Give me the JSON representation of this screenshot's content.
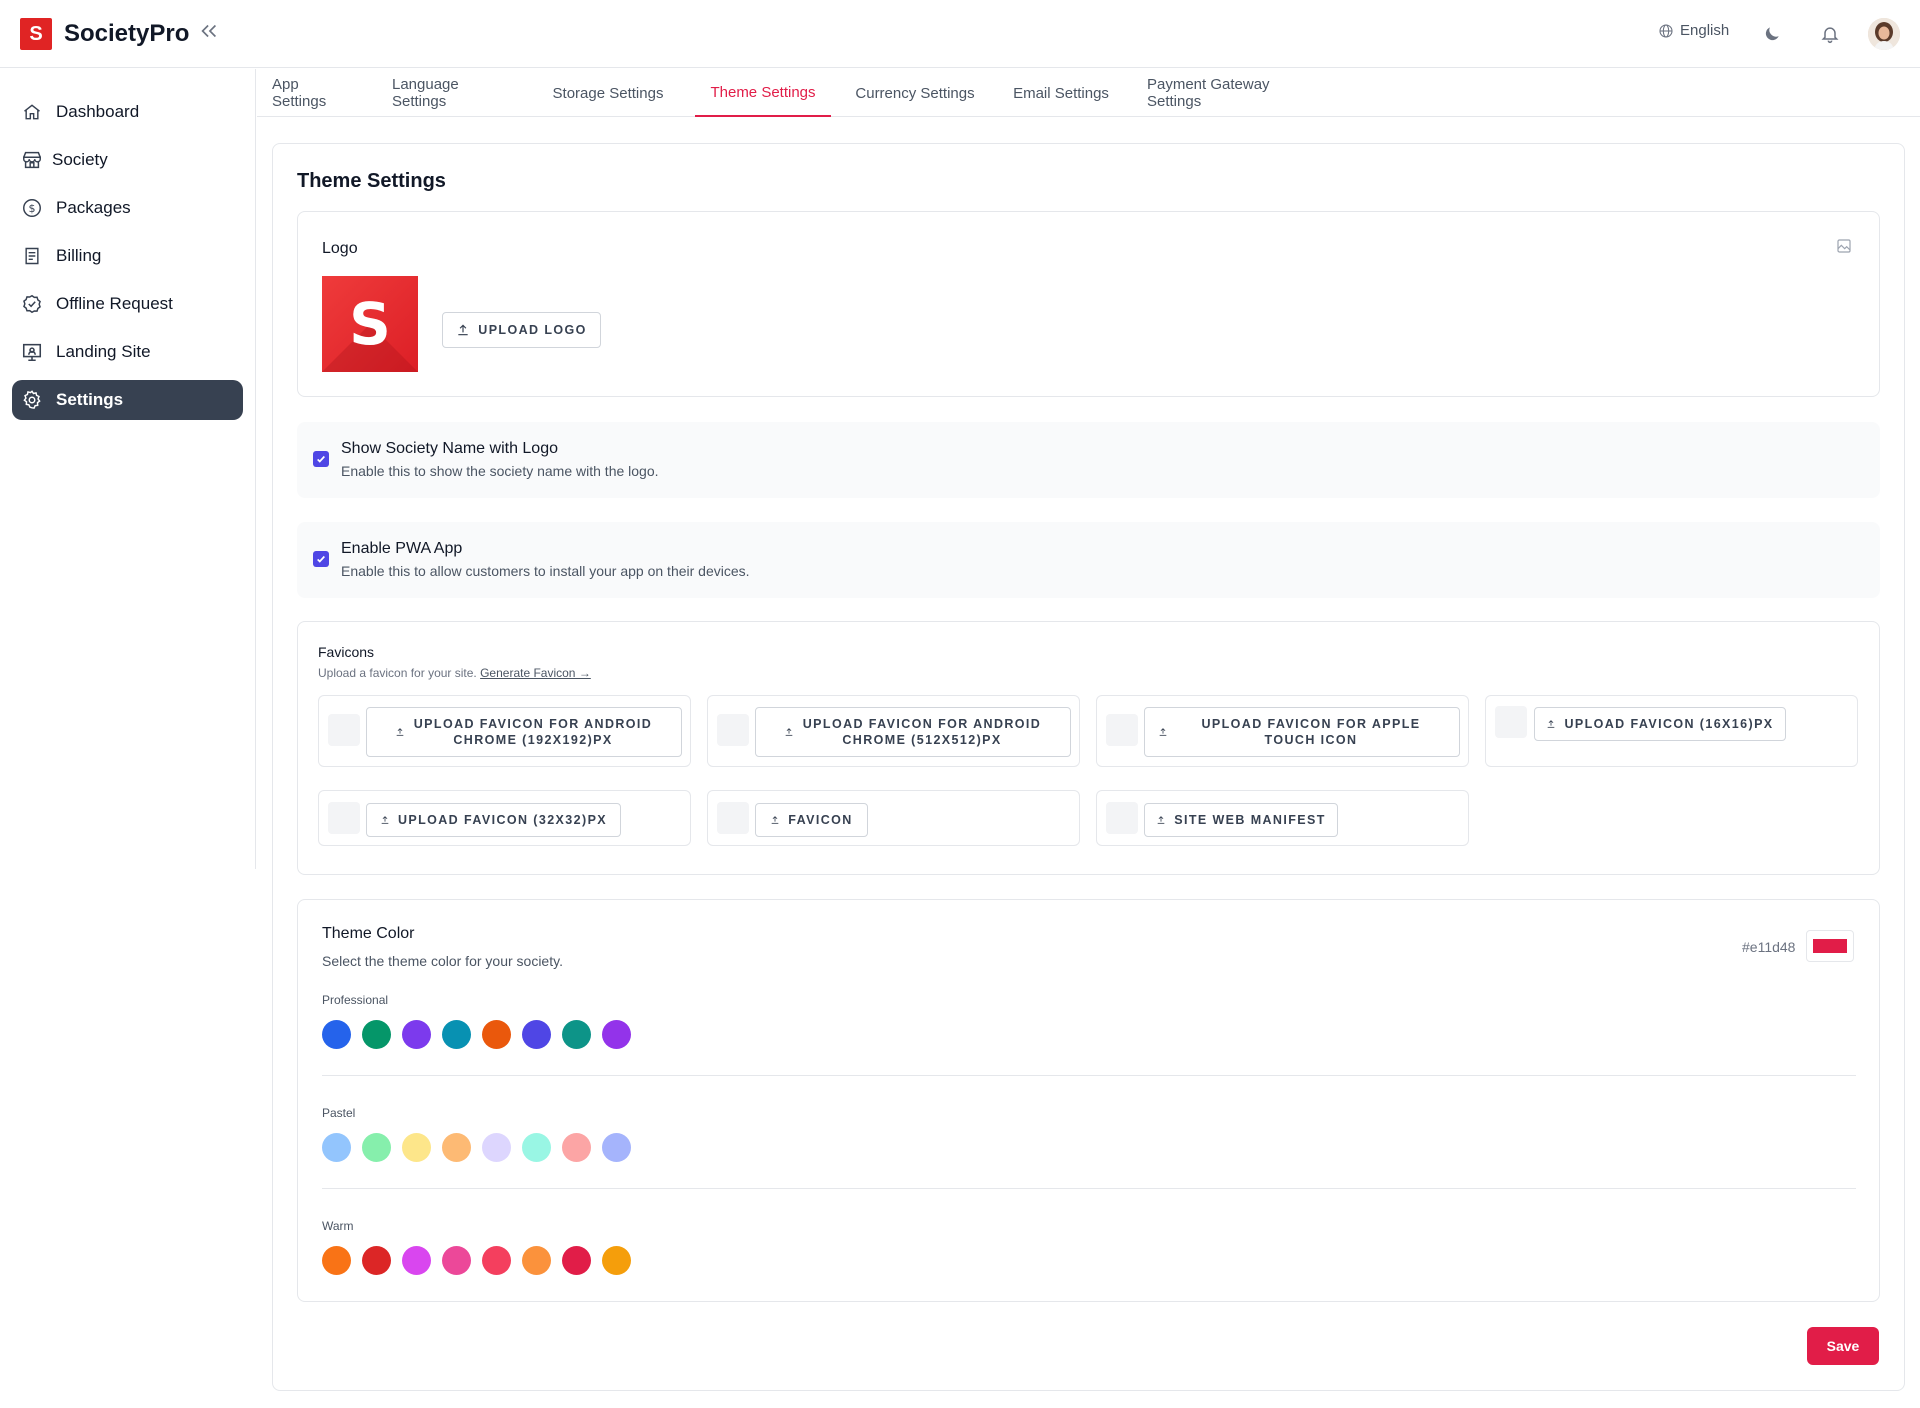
{
  "header": {
    "brand_letter": "S",
    "brand_name": "SocietyPro",
    "language": "English"
  },
  "sidebar": {
    "items": [
      {
        "label": "Dashboard",
        "icon": "home-icon"
      },
      {
        "label": "Society",
        "icon": "store-icon"
      },
      {
        "label": "Packages",
        "icon": "dollar-circle-icon"
      },
      {
        "label": "Billing",
        "icon": "receipt-icon"
      },
      {
        "label": "Offline Request",
        "icon": "badge-check-icon"
      },
      {
        "label": "Landing Site",
        "icon": "monitor-icon"
      },
      {
        "label": "Settings",
        "icon": "gear-icon",
        "active": true
      }
    ]
  },
  "tabs": [
    {
      "label": "App Settings"
    },
    {
      "label": "Language Settings"
    },
    {
      "label": "Storage Settings"
    },
    {
      "label": "Theme Settings",
      "active": true
    },
    {
      "label": "Currency Settings"
    },
    {
      "label": "Email Settings"
    },
    {
      "label": "Payment Gateway Settings"
    }
  ],
  "page_title": "Theme Settings",
  "logo_section": {
    "label": "Logo",
    "logo_letter": "S",
    "upload_label": "UPLOAD LOGO"
  },
  "options": {
    "show_name": {
      "title": "Show Society Name with Logo",
      "desc": "Enable this to show the society name with the logo.",
      "checked": true
    },
    "pwa": {
      "title": "Enable PWA App",
      "desc": "Enable this to allow customers to install your app on their devices.",
      "checked": true
    }
  },
  "favicons": {
    "title": "Favicons",
    "desc": "Upload a favicon for your site.",
    "link": "Generate Favicon →",
    "buttons": [
      "UPLOAD FAVICON FOR ANDROID CHROME (192X192)PX",
      "UPLOAD FAVICON FOR ANDROID CHROME (512X512)PX",
      "UPLOAD FAVICON FOR APPLE TOUCH ICON",
      "UPLOAD FAVICON (16X16)PX",
      "UPLOAD FAVICON (32X32)PX",
      "FAVICON",
      "SITE WEB MANIFEST"
    ]
  },
  "theme_color": {
    "title": "Theme Color",
    "desc": "Select the theme color for your society.",
    "current_hex": "#e11d48",
    "groups": [
      {
        "name": "Professional",
        "colors": [
          "#2563eb",
          "#059669",
          "#7c3aed",
          "#0891b2",
          "#ea580c",
          "#4f46e5",
          "#0d9488",
          "#9333ea"
        ]
      },
      {
        "name": "Pastel",
        "colors": [
          "#93c5fd",
          "#86efac",
          "#fde68a",
          "#fdba74",
          "#ddd6fe",
          "#99f6e4",
          "#fca5a5",
          "#a5b4fc"
        ]
      },
      {
        "name": "Warm",
        "colors": [
          "#f97316",
          "#dc2626",
          "#d946ef",
          "#ec4899",
          "#f43f5e",
          "#fb923c",
          "#e11d48",
          "#f59e0b"
        ]
      }
    ]
  },
  "save_label": "Save",
  "colors": {
    "accent": "#e11d48",
    "sidebar_active": "#374151",
    "checkbox": "#4f46e5",
    "brand_red": "#e02424"
  }
}
